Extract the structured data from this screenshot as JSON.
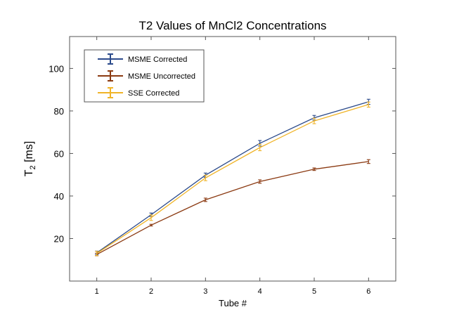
{
  "chart_data": {
    "type": "line",
    "title": "T2 Values of MnCl2 Concentrations",
    "xlabel": "Tube #",
    "ylabel": {
      "main": "T",
      "sub": "2",
      "unit": " [ms]"
    },
    "x": [
      1,
      2,
      3,
      4,
      5,
      6
    ],
    "xlim": [
      0.5,
      6.5
    ],
    "ylim": [
      0,
      115
    ],
    "yticks": [
      20,
      40,
      60,
      80,
      100
    ],
    "legend_position": "top-left",
    "series": [
      {
        "name": "MSME Corrected",
        "color": "#2b4a8b",
        "values": [
          13.3,
          31.2,
          49.8,
          64.8,
          76.8,
          84.3
        ],
        "errors": [
          0.8,
          0.8,
          1.0,
          1.3,
          1.1,
          1.2
        ]
      },
      {
        "name": "MSME Uncorrected",
        "color": "#8b3a12",
        "values": [
          12.5,
          26.3,
          38.2,
          46.8,
          52.6,
          56.2
        ],
        "errors": [
          0.6,
          0.4,
          0.8,
          0.8,
          0.6,
          0.9
        ]
      },
      {
        "name": "SSE Corrected",
        "color": "#f0b428",
        "values": [
          13.0,
          29.8,
          48.5,
          62.8,
          75.3,
          83.0
        ],
        "errors": [
          1.0,
          1.3,
          1.3,
          1.5,
          1.3,
          1.2
        ]
      }
    ]
  }
}
